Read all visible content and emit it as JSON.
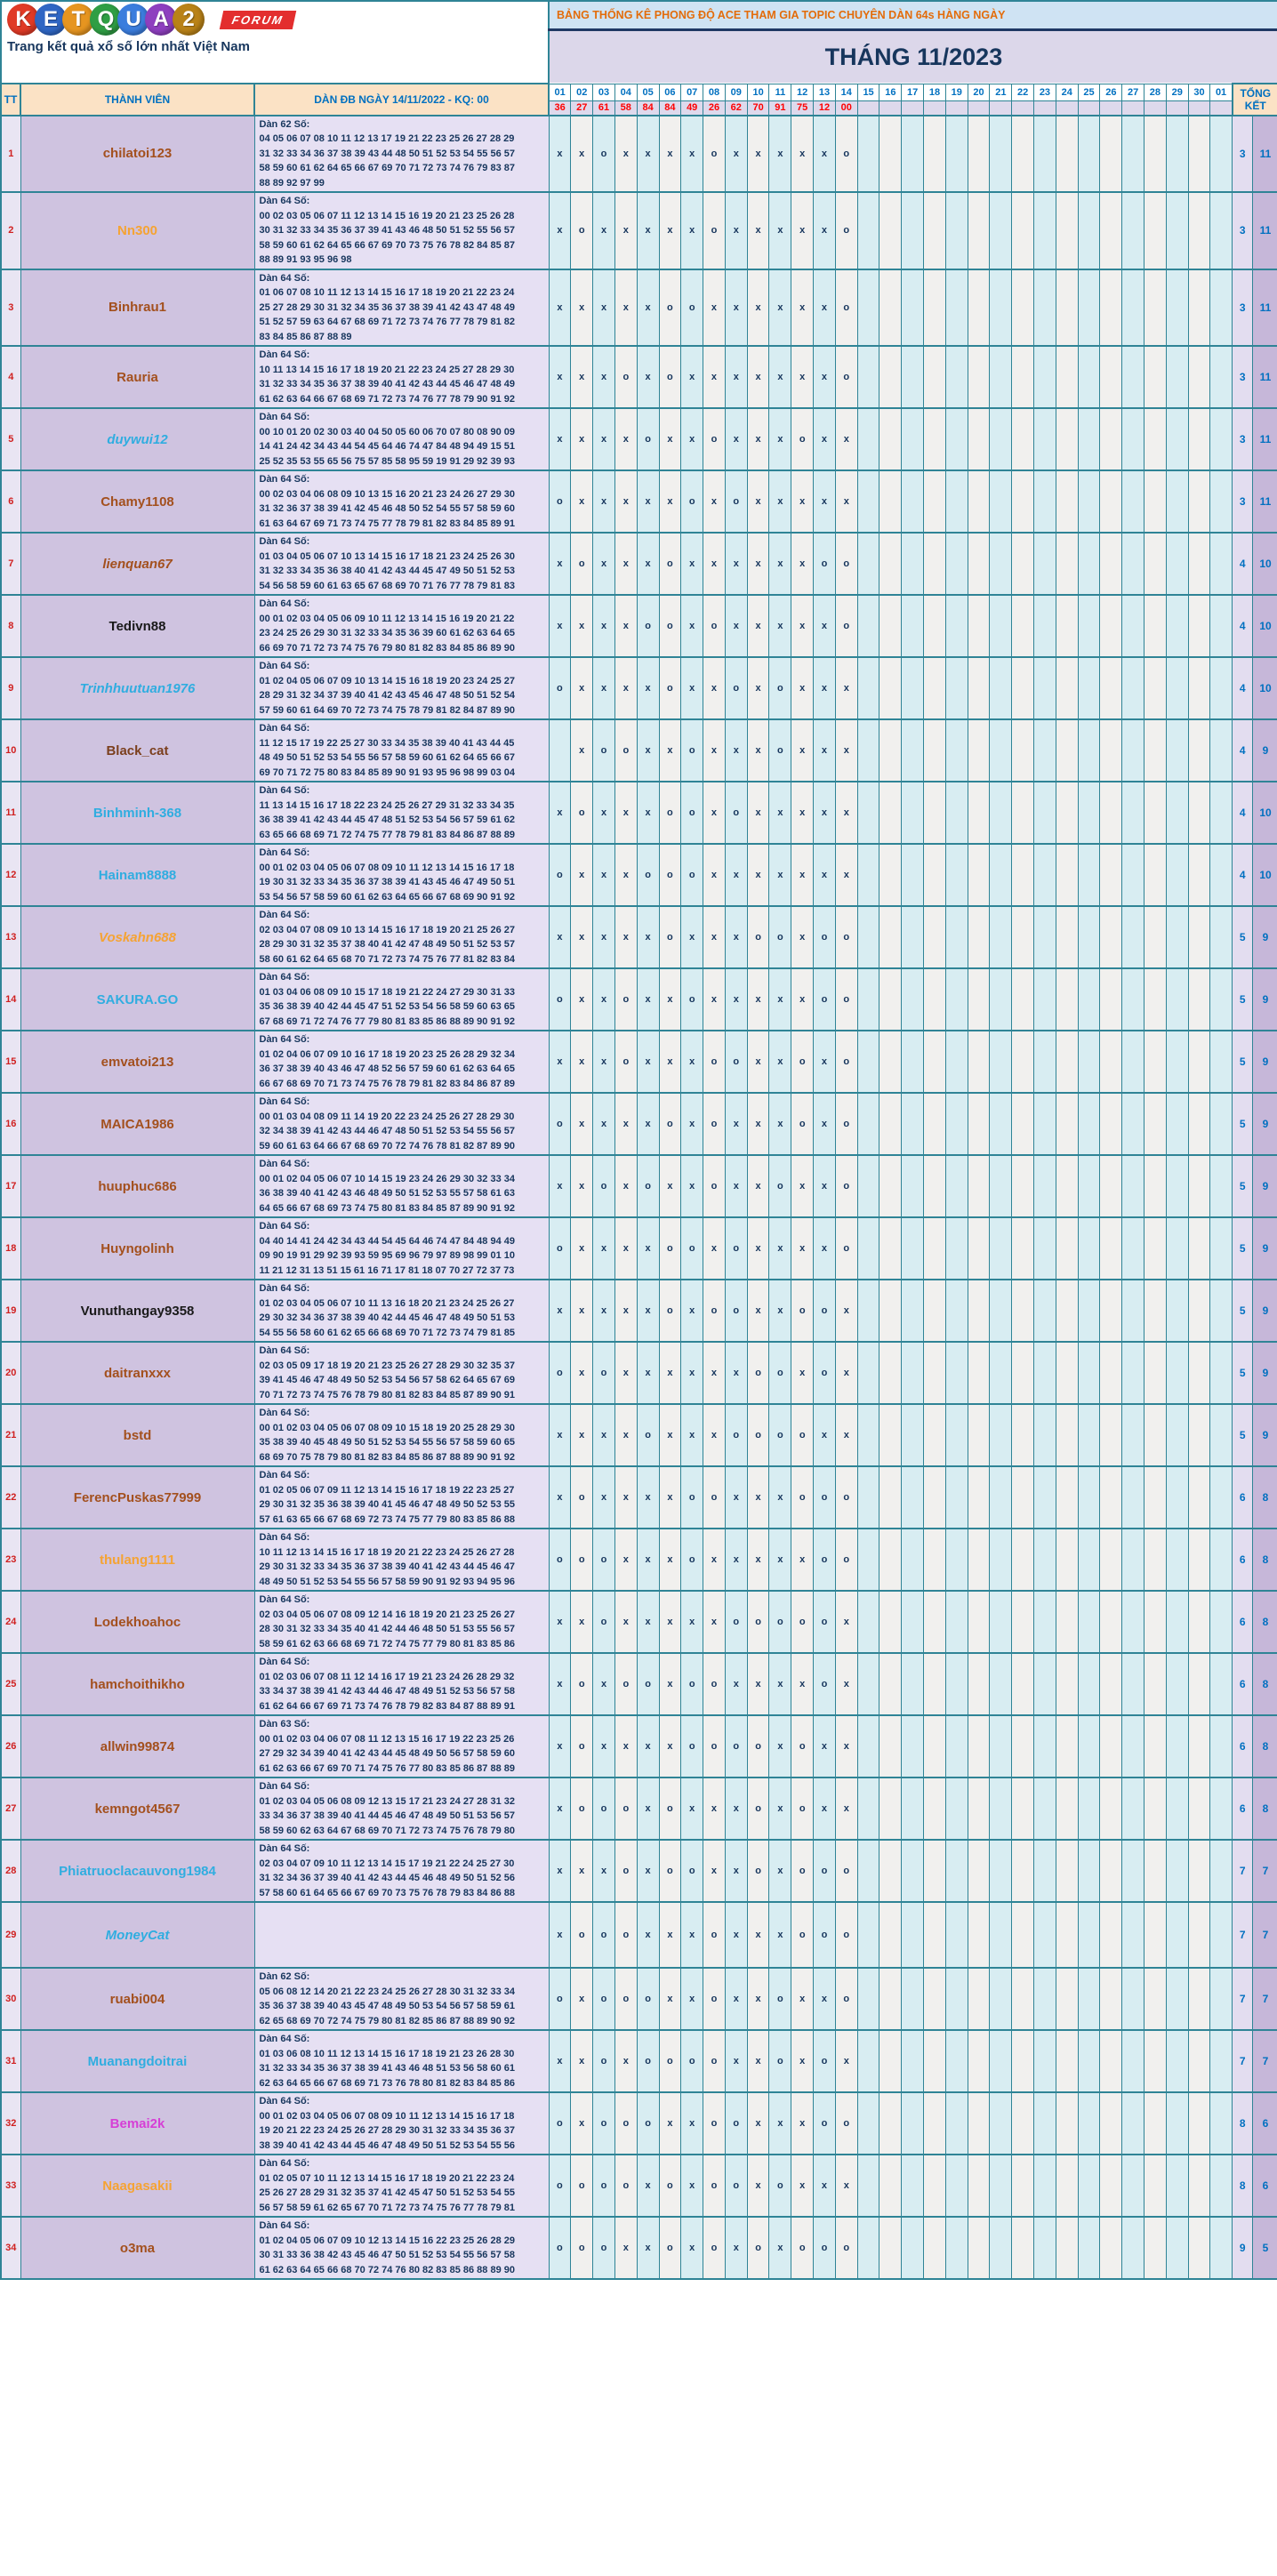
{
  "palette": {
    "teal": "#2f8496",
    "navy": "#17365d",
    "headblue": "#0070c0",
    "red": "#d02020",
    "kqred": "#ff0000",
    "peach": "#fbe2c5",
    "lavender": "#dcd7ea",
    "bannerbg": "#cfe3f3",
    "bannertxt": "#e36c0a",
    "ttbg": "#e9e5f3",
    "namebg": "#cfc3e0",
    "danbg": "#e6e0f3",
    "dayodd": "#d8edf2",
    "dayeven": "#f1f0ee",
    "kqbg": "#ded9ec",
    "t1bg": "#e3ddf0",
    "t2bg": "#c6b7d9",
    "forumred": "#e32e2e"
  },
  "logo": {
    "letters": [
      {
        "ch": "K",
        "color": "#e03a26"
      },
      {
        "ch": "E",
        "color": "#2f66c4"
      },
      {
        "ch": "T",
        "color": "#e69520"
      },
      {
        "ch": "Q",
        "color": "#2f9e44"
      },
      {
        "ch": "U",
        "color": "#3b7ddd"
      },
      {
        "ch": "A",
        "color": "#8e3fbf"
      },
      {
        "ch": "2",
        "color": "#b98217"
      }
    ],
    "forum": "FORUM",
    "tagline": "Trang kết quả xổ số lớn nhất Việt Nam"
  },
  "header": {
    "banner": "BẢNG THỐNG KÊ PHONG ĐỘ ACE THAM GIA TOPIC CHUYÊN DÀN 64s HÀNG NGÀY",
    "month": "THÁNG 11/2023"
  },
  "table": {
    "col_tt": "TT",
    "col_member": "THÀNH VIÊN",
    "col_dan": "DÀN ĐB NGÀY 14/11/2022 - KQ: 00",
    "col_total": "TỔNG KẾT",
    "days": [
      "01",
      "02",
      "03",
      "04",
      "05",
      "06",
      "07",
      "08",
      "09",
      "10",
      "11",
      "12",
      "13",
      "14",
      "15",
      "16",
      "17",
      "18",
      "19",
      "20",
      "21",
      "22",
      "23",
      "24",
      "25",
      "26",
      "27",
      "28",
      "29",
      "30",
      "01"
    ],
    "kq": [
      "36",
      "27",
      "61",
      "58",
      "84",
      "84",
      "49",
      "26",
      "62",
      "70",
      "91",
      "75",
      "12",
      "00"
    ],
    "rows": [
      {
        "tt": "1",
        "name": "chilatoi123",
        "color": "#a3501e",
        "italic": false,
        "title": "Dàn 62 Số:",
        "lines": [
          "04 05 06 07 08 10 11 12 13 17 19 21 22 23 25 26 27 28 29",
          "31 32 33 34 36 37 38 39 43 44 48 50 51 52 53 54 55 56 57",
          "58 59 60 61 62 64 65 66 67 69 70 71 72 73 74 76 79 83 87",
          "88 89 92 97 99"
        ],
        "marks": "xxoxxxxoxxxxxo",
        "o": "3",
        "x": "11"
      },
      {
        "tt": "2",
        "name": "Nn300",
        "color": "#f5a333",
        "italic": false,
        "title": "Dàn 64 Số:",
        "lines": [
          "00 02 03 05 06 07 11 12 13 14 15 16 19 20 21 23 25 26 28",
          "30 31 32 33 34 35 36 37 39 41 43 46 48 50 51 52 55 56 57",
          "58 59 60 61 62 64 65 66 67 69 70 73 75 76 78 82 84 85 87",
          "88 89 91 93 95 96 98"
        ],
        "marks": "xoxxxxxoxxxxxo",
        "o": "3",
        "x": "11"
      },
      {
        "tt": "3",
        "name": "Binhrau1",
        "color": "#a3501e",
        "italic": false,
        "title": "Dàn 64 Số:",
        "lines": [
          "01 06 07 08 10 11 12 13 14 15 16 17 18 19 20 21 22 23 24",
          "25 27 28 29 30 31 32 34 35 36 37 38 39 41 42 43 47 48 49",
          "51 52 57 59 63 64 67 68 69 71 72 73 74 76 77 78 79 81 82",
          "83 84 85 86 87 88 89"
        ],
        "marks": "xxxxxooxxxxxxo",
        "o": "3",
        "x": "11"
      },
      {
        "tt": "4",
        "name": "Rauria",
        "color": "#a3501e",
        "italic": false,
        "title": "Dàn 64 Số:",
        "lines": [
          "10 11 13 14 15 16 17 18 19 20 21 22 23 24 25 27 28 29 30",
          "31 32 33 34 35 36 37 38 39 40 41 42 43 44 45 46 47 48 49",
          "61 62 63 64 66 67 68 69 71 72 73 74 76 77 78 79 90 91 92"
        ],
        "marks": "xxxoxoxxxxxxxo",
        "o": "3",
        "x": "11"
      },
      {
        "tt": "5",
        "name": "duywui12",
        "color": "#30ade0",
        "italic": true,
        "title": "Dàn 64 Số:",
        "lines": [
          "00 10 01 20 02 30 03 40 04 50 05 60 06 70 07 80 08 90 09",
          "14 41 24 42 34 43 44 54 45 64 46 74 47 84 48 94 49 15 51",
          "25 52 35 53 55 65 56 75 57 85 58 95 59 19 91 29 92 39 93"
        ],
        "marks": "xxxxoxxoxxxoxx",
        "o": "3",
        "x": "11"
      },
      {
        "tt": "6",
        "name": "Chamy1108",
        "color": "#a3501e",
        "italic": false,
        "title": "Dàn 64 Số:",
        "lines": [
          "00 02 03 04 06 08 09 10 13 15 16 20 21 23 24 26 27 29 30",
          "31 32 36 37 38 39 41 42 45 46 48 50 52 54 55 57 58 59 60",
          "61 63 64 67 69 71 73 74 75 77 78 79 81 82 83 84 85 89 91"
        ],
        "marks": "oxxxxxoxoxxxxx",
        "o": "3",
        "x": "11"
      },
      {
        "tt": "7",
        "name": "lienquan67",
        "color": "#a3501e",
        "italic": true,
        "title": "Dàn 64 Số:",
        "lines": [
          "01 03 04 05 06 07 10 13 14 15 16 17 18 21 23 24 25 26 30",
          "31 32 33 34 35 36 38 40 41 42 43 44 45 47 49 50 51 52 53",
          "54 56 58 59 60 61 63 65 67 68 69 70 71 76 77 78 79 81 83"
        ],
        "marks": "xoxxxoxxxxxxoo",
        "o": "4",
        "x": "10"
      },
      {
        "tt": "8",
        "name": "Tedivn88",
        "color": "#1a1a1a",
        "italic": false,
        "title": "Dàn 64 Số:",
        "lines": [
          "00 01 02 03 04 05 06 09 10 11 12 13 14 15 16 19 20 21 22",
          "23 24 25 26 29 30 31 32 33 34 35 36 39 60 61 62 63 64 65",
          "66 69 70 71 72 73 74 75 76 79 80 81 82 83 84 85 86 89 90"
        ],
        "marks": "xxxxooxoxxxxxo",
        "o": "4",
        "x": "10"
      },
      {
        "tt": "9",
        "name": "Trinhhuutuan1976",
        "color": "#30ade0",
        "italic": true,
        "title": "Dàn 64 Số:",
        "lines": [
          "01 02 04 05 06 07 09 10 13 14 15 16 18 19 20 23 24 25 27",
          "28 29 31 32 34 37 39 40 41 42 43 45 46 47 48 50 51 52 54",
          "57 59 60 61 64 69 70 72 73 74 75 78 79 81 82 84 87 89 90"
        ],
        "marks": "oxxxxoxxoxoxxx",
        "o": "4",
        "x": "10"
      },
      {
        "tt": "10",
        "name": "Black_cat",
        "color": "#7b3f1d",
        "italic": false,
        "title": "Dàn 64 Số:",
        "lines": [
          "11 12 15 17 19 22 25 27 30 33 34 35 38 39 40 41 43 44 45",
          "48 49 50 51 52 53 54 55 56 57 58 59 60 61 62 64 65 66 67",
          "69 70 71 72 75 80 83 84 85 89 90 91 93 95 96 98 99 03 04"
        ],
        "marks": "-xooxxoxxxoxxx",
        "o": "4",
        "x": "9"
      },
      {
        "tt": "11",
        "name": "Binhminh-368",
        "color": "#30ade0",
        "italic": false,
        "title": "Dàn 64 Số:",
        "lines": [
          "11 13 14 15 16 17 18 22 23 24 25 26 27 29 31 32 33 34 35",
          "36 38 39 41 42 43 44 45 47 48 51 52 53 54 56 57 59 61 62",
          "63 65 66 68 69 71 72 74 75 77 78 79 81 83 84 86 87 88 89"
        ],
        "marks": "xoxxxooxoxxxxx",
        "o": "4",
        "x": "10"
      },
      {
        "tt": "12",
        "name": "Hainam8888",
        "color": "#30ade0",
        "italic": false,
        "title": "Dàn 64 Số:",
        "lines": [
          "00 01 02 03 04 05 06 07 08 09 10 11 12 13 14 15 16 17 18",
          "19 30 31 32 33 34 35 36 37 38 39 41 43 45 46 47 49 50 51",
          "53 54 56 57 58 59 60 61 62 63 64 65 66 67 68 69 90 91 92"
        ],
        "marks": "oxxxoooxxxxxxx",
        "o": "4",
        "x": "10"
      },
      {
        "tt": "13",
        "name": "Voskahn688",
        "color": "#f5a333",
        "italic": true,
        "title": "Dàn 64 Số:",
        "lines": [
          "02 03 04 07 08 09 10 13 14 15 16 17 18 19 20 21 25 26 27",
          "28 29 30 31 32 35 37 38 40 41 42 47 48 49 50 51 52 53 57",
          "58 60 61 62 64 65 68 70 71 72 73 74 75 76 77 81 82 83 84"
        ],
        "marks": "xxxxxoxxxooxoo",
        "o": "5",
        "x": "9"
      },
      {
        "tt": "14",
        "name": "SAKURA.GO",
        "color": "#30ade0",
        "italic": false,
        "title": "Dàn 64 Số:",
        "lines": [
          "01 03 04 06 08 09 10 15 17 18 19 21 22 24 27 29 30 31 33",
          "35 36 38 39 40 42 44 45 47 51 52 53 54 56 58 59 60 63 65",
          "67 68 69 71 72 74 76 77 79 80 81 83 85 86 88 89 90 91 92"
        ],
        "marks": "oxxoxxoxxxxxoo",
        "o": "5",
        "x": "9"
      },
      {
        "tt": "15",
        "name": "emvatoi213",
        "color": "#a3501e",
        "italic": false,
        "title": "Dàn 64 Số:",
        "lines": [
          "01 02 04 06 07 09 10 16 17 18 19 20 23 25 26 28 29 32 34",
          "36 37 38 39 40 43 46 47 48 52 56 57 59 60 61 62 63 64 65",
          "66 67 68 69 70 71 73 74 75 76 78 79 81 82 83 84 86 87 89"
        ],
        "marks": "xxxoxxxooxxoxo",
        "o": "5",
        "x": "9"
      },
      {
        "tt": "16",
        "name": "MAICA1986",
        "color": "#a3501e",
        "italic": false,
        "title": "Dàn 64 Số:",
        "lines": [
          "00 01 03 04 08 09 11 14 19 20 22 23 24 25 26 27 28 29 30",
          "32 34 38 39 41 42 43 44 46 47 48 50 51 52 53 54 55 56 57",
          "59 60 61 63 64 66 67 68 69 70 72 74 76 78 81 82 87 89 90"
        ],
        "marks": "oxxxxoxoxxxoxo",
        "o": "5",
        "x": "9"
      },
      {
        "tt": "17",
        "name": "huuphuc686",
        "color": "#a3501e",
        "italic": false,
        "title": "Dàn 64 Số:",
        "lines": [
          "00 01 02 04 05 06 07 10 14 15 19 23 24 26 29 30 32 33 34",
          "36 38 39 40 41 42 43 46 48 49 50 51 52 53 55 57 58 61 63",
          "64 65 66 67 68 69 73 74 75 80 81 83 84 85 87 89 90 91 92"
        ],
        "marks": "xxoxoxxoxxoxxo",
        "o": "5",
        "x": "9"
      },
      {
        "tt": "18",
        "name": "Huyngolinh",
        "color": "#a3501e",
        "italic": false,
        "title": "Dàn 64 Số:",
        "lines": [
          "04 40 14 41 24 42 34 43 44 54 45 64 46 74 47 84 48 94 49",
          "09 90 19 91 29 92 39 93 59 95 69 96 79 97 89 98 99 01 10",
          "11 21 12 31 13 51 15 61 16 71 17 81 18 07 70 27 72 37 73"
        ],
        "marks": "oxxxxooxoxxxxo",
        "o": "5",
        "x": "9"
      },
      {
        "tt": "19",
        "name": "Vunuthangay9358",
        "color": "#1a1a1a",
        "italic": false,
        "title": "Dàn 64 Số:",
        "lines": [
          "01 02 03 04 05 06 07 10 11 13 16 18 20 21 23 24 25 26 27",
          "29 30 32 34 36 37 38 39 40 42 44 45 46 47 48 49 50 51 53",
          "54 55 56 58 60 61 62 65 66 68 69 70 71 72 73 74 79 81 85"
        ],
        "marks": "xxxxxoxooxxoox",
        "o": "5",
        "x": "9"
      },
      {
        "tt": "20",
        "name": "daitranxxx",
        "color": "#a3501e",
        "italic": false,
        "title": "Dàn 64 Số:",
        "lines": [
          "02 03 05 09 17 18 19 20 21 23 25 26 27 28 29 30 32 35 37",
          "39 41 45 46 47 48 49 50 52 53 54 56 57 58 62 64 65 67 69",
          "70 71 72 73 74 75 76 78 79 80 81 82 83 84 85 87 89 90 91"
        ],
        "marks": "oxoxxxxxxooxox",
        "o": "5",
        "x": "9"
      },
      {
        "tt": "21",
        "name": "bstd",
        "color": "#a3501e",
        "italic": false,
        "title": "Dàn 64 Số:",
        "lines": [
          "00 01 02 03 04 05 06 07 08 09 10 15 18 19 20 25 28 29 30",
          "35 38 39 40 45 48 49 50 51 52 53 54 55 56 57 58 59 60 65",
          "68 69 70 75 78 79 80 81 82 83 84 85 86 87 88 89 90 91 92"
        ],
        "marks": "xxxxoxxxooooxx",
        "o": "5",
        "x": "9"
      },
      {
        "tt": "22",
        "name": "FerencPuskas77999",
        "color": "#a3501e",
        "italic": false,
        "title": "Dàn 64 Số:",
        "lines": [
          "01 02 05 06 07 09 11 12 13 14 15 16 17 18 19 22 23 25 27",
          "29 30 31 32 35 36 38 39 40 41 45 46 47 48 49 50 52 53 55",
          "57 61 63 65 66 67 68 69 72 73 74 75 77 79 80 83 85 86 88"
        ],
        "marks": "xoxxxxooxxxooo",
        "o": "6",
        "x": "8"
      },
      {
        "tt": "23",
        "name": "thulang1111",
        "color": "#f5a333",
        "italic": false,
        "title": "Dàn 64 Số:",
        "lines": [
          "10 11 12 13 14 15 16 17 18 19 20 21 22 23 24 25 26 27 28",
          "29 30 31 32 33 34 35 36 37 38 39 40 41 42 43 44 45 46 47",
          "48 49 50 51 52 53 54 55 56 57 58 59 90 91 92 93 94 95 96"
        ],
        "marks": "oooxxxoxxxxxoo",
        "o": "6",
        "x": "8"
      },
      {
        "tt": "24",
        "name": "Lodekhoahoc",
        "color": "#a3501e",
        "italic": false,
        "title": "Dàn 64 Số:",
        "lines": [
          "02 03 04 05 06 07 08 09 12 14 16 18 19 20 21 23 25 26 27",
          "28 30 31 32 33 34 35 40 41 42 44 46 48 50 51 53 55 56 57",
          "58 59 61 62 63 66 68 69 71 72 74 75 77 79 80 81 83 85 86"
        ],
        "marks": "xxoxxxxxooooox",
        "o": "6",
        "x": "8"
      },
      {
        "tt": "25",
        "name": "hamchoithikho",
        "color": "#a3501e",
        "italic": false,
        "title": "Dàn 64 Số:",
        "lines": [
          "01 02 03 06 07 08 11 12 14 16 17 19 21 23 24 26 28 29 32",
          "33 34 37 38 39 41 42 43 44 46 47 48 49 51 52 53 56 57 58",
          "61 62 64 66 67 69 71 73 74 76 78 79 82 83 84 87 88 89 91"
        ],
        "marks": "xoxooxooxxxxox",
        "o": "6",
        "x": "8"
      },
      {
        "tt": "26",
        "name": "allwin99874",
        "color": "#a3501e",
        "italic": false,
        "title": "Dàn 63 Số:",
        "lines": [
          "00 01 02 03 04 06 07 08 11 12 13 15 16 17 19 22 23 25 26",
          "27 29 32 34 39 40 41 42 43 44 45 48 49 50 56 57 58 59 60",
          "61 62 63 66 67 69 70 71 74 75 76 77 80 83 85 86 87 88 89"
        ],
        "marks": "xoxxxxooooxoxx",
        "o": "6",
        "x": "8"
      },
      {
        "tt": "27",
        "name": "kemngot4567",
        "color": "#a3501e",
        "italic": false,
        "title": "Dàn 64 Số:",
        "lines": [
          "01 02 03 04 05 06 08 09 12 13 15 17 21 23 24 27 28 31 32",
          "33 34 36 37 38 39 40 41 44 45 46 47 48 49 50 51 53 56 57",
          "58 59 60 62 63 64 67 68 69 70 71 72 73 74 75 76 78 79 80"
        ],
        "marks": "xoooxoxxxoxoxx",
        "o": "6",
        "x": "8"
      },
      {
        "tt": "28",
        "name": "Phiatruoclacauvong1984",
        "color": "#30ade0",
        "italic": false,
        "title": "Dàn 64 Số:",
        "lines": [
          "02 03 04 07 09 10 11 12 13 14 15 17 19 21 22 24 25 27 30",
          "31 32 34 36 37 39 40 41 42 43 44 45 46 48 49 50 51 52 56",
          "57 58 60 61 64 65 66 67 69 70 73 75 76 78 79 83 84 86 88"
        ],
        "marks": "xxxoxooxxoxooo",
        "o": "7",
        "x": "7"
      },
      {
        "tt": "29",
        "name": "MoneyCat",
        "color": "#30ade0",
        "italic": true,
        "title": "",
        "lines": [],
        "marks": "xoooxxxoxxxooo",
        "o": "7",
        "x": "7"
      },
      {
        "tt": "30",
        "name": "ruabi004",
        "color": "#a3501e",
        "italic": false,
        "title": "Dàn 62 Số:",
        "lines": [
          "05 06 08 12 14 20 21 22 23 24 25 26 27 28 30 31 32 33 34",
          "35 36 37 38 39 40 43 45 47 48 49 50 53 54 56 57 58 59 61",
          "62 65 68 69 70 72 74 75 79 80 81 82 85 86 87 88 89 90 92"
        ],
        "marks": "oxoooxxoxxoxxo",
        "o": "7",
        "x": "7"
      },
      {
        "tt": "31",
        "name": "Muanangdoitrai",
        "color": "#30ade0",
        "italic": false,
        "title": "Dàn 64 Số:",
        "lines": [
          "01 03 06 08 10 11 12 13 14 15 16 17 18 19 21 23 26 28 30",
          "31 32 33 34 35 36 37 38 39 41 43 46 48 51 53 56 58 60 61",
          "62 63 64 65 66 67 68 69 71 73 76 78 80 81 82 83 84 85 86"
        ],
        "marks": "xxoxoooo xxoxox",
        "o": "7",
        "x": "7"
      },
      {
        "tt": "32",
        "name": "Bemai2k",
        "color": "#d63fd6",
        "italic": false,
        "title": "Dàn 64 Số:",
        "lines": [
          "00 01 02 03 04 05 06 07 08 09 10 11 12 13 14 15 16 17 18",
          "19 20 21 22 23 24 25 26 27 28 29 30 31 32 33 34 35 36 37",
          "38 39 40 41 42 43 44 45 46 47 48 49 50 51 52 53 54 55 56"
        ],
        "marks": "oxoooxxooxxxoo",
        "o": "8",
        "x": "6"
      },
      {
        "tt": "33",
        "name": "Naagasakii",
        "color": "#f5a333",
        "italic": false,
        "title": "Dàn 64 Số:",
        "lines": [
          "01 02 05 07 10 11 12 13 14 15 16 17 18 19 20 21 22 23 24",
          "25 26 27 28 29 31 32 35 37 41 42 45 47 50 51 52 53 54 55",
          "56 57 58 59 61 62 65 67 70 71 72 73 74 75 76 77 78 79 81"
        ],
        "marks": "ooooxoxooxoxxx",
        "o": "8",
        "x": "6"
      },
      {
        "tt": "34",
        "name": "o3ma",
        "color": "#a3501e",
        "italic": false,
        "title": "Dàn 64 Số:",
        "lines": [
          "01 02 04 05 06 07 09 10 12 13 14 15 16 22 23 25 26 28 29",
          "30 31 33 36 38 42 43 45 46 47 50 51 52 53 54 55 56 57 58",
          "61 62 63 64 65 66 68 70 72 74 76 80 82 83 85 86 88 89 90"
        ],
        "marks": "oooxxoxoxoxooo",
        "o": "9",
        "x": "5"
      }
    ]
  }
}
